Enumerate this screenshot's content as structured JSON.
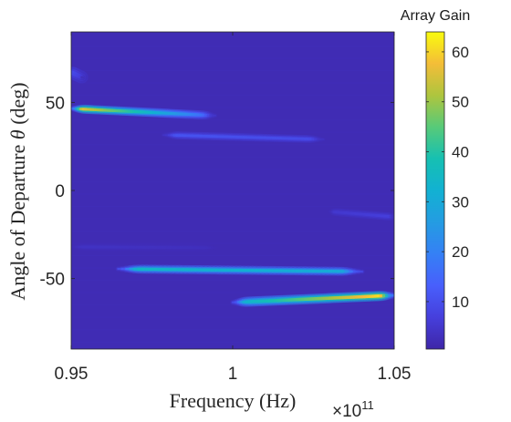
{
  "chart_data": {
    "type": "heatmap",
    "xlabel": "Frequency (Hz)",
    "ylabel_prefix": "Angle of Departure ",
    "ylabel_symbol": "θ",
    "ylabel_suffix": " (deg)",
    "xlim": [
      0.95,
      1.05
    ],
    "ylim": [
      -90,
      90
    ],
    "x_exponent_label": "×10",
    "x_exponent": "11",
    "x_ticks": [
      {
        "value": 0.95,
        "label": "0.95"
      },
      {
        "value": 1.0,
        "label": "1"
      },
      {
        "value": 1.05,
        "label": "1.05"
      }
    ],
    "y_ticks": [
      {
        "value": 50,
        "label": "50"
      },
      {
        "value": 0,
        "label": "0"
      },
      {
        "value": -50,
        "label": "-50"
      }
    ],
    "colorbar": {
      "title": "Array Gain",
      "colormap": "parula",
      "range": [
        0.5,
        64
      ],
      "ticks": [
        {
          "value": 10,
          "label": "10"
        },
        {
          "value": 20,
          "label": "20"
        },
        {
          "value": 30,
          "label": "30"
        },
        {
          "value": 40,
          "label": "40"
        },
        {
          "value": 50,
          "label": "50"
        },
        {
          "value": 60,
          "label": "60"
        }
      ]
    },
    "background_gain": 2,
    "beams": [
      {
        "f_start": 0.95,
        "f_end": 0.9945,
        "angle_start": 46.5,
        "angle_end": 42.5,
        "peak_gain": 60,
        "gain_end": 12,
        "width_deg": 1.6
      },
      {
        "f_start": 0.9645,
        "f_end": 1.04,
        "angle_start": -44.5,
        "angle_end": -46,
        "peak_gain": 35,
        "gain_end": 30,
        "width_deg": 1.6
      },
      {
        "f_start": 1.0,
        "f_end": 1.05,
        "angle_start": -63.5,
        "angle_end": -59.5,
        "peak_gain": 30,
        "gain_end": 64,
        "width_deg": 1.8
      },
      {
        "f_start": 0.9785,
        "f_end": 1.028,
        "angle_start": 31.5,
        "angle_end": 29,
        "peak_gain": 11,
        "gain_end": 9,
        "width_deg": 1.4
      },
      {
        "f_start": 0.95,
        "f_end": 0.9535,
        "angle_start": 67,
        "angle_end": 64,
        "peak_gain": 10,
        "gain_end": 6,
        "width_deg": 2.2
      },
      {
        "f_start": 0.95,
        "f_end": 0.995,
        "angle_start": -32,
        "angle_end": -32.5,
        "peak_gain": 4,
        "gain_end": 3,
        "width_deg": 1.4
      },
      {
        "f_start": 1.03,
        "f_end": 1.05,
        "angle_start": -12,
        "angle_end": -15,
        "peak_gain": 5,
        "gain_end": 7,
        "width_deg": 1.4
      }
    ]
  }
}
